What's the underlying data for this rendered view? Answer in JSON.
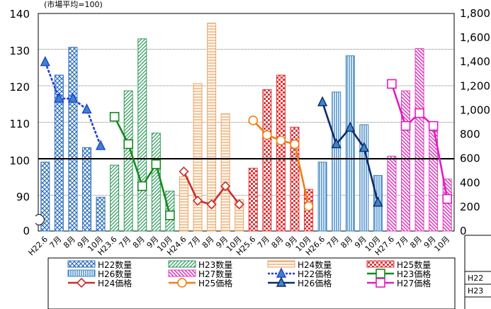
{
  "chart_data": {
    "type": "bar+line",
    "subtitle": "(市場平均=100)",
    "categories": [
      "H22.6",
      "7月",
      "8月",
      "9月",
      "10月",
      "H23.6",
      "7月",
      "8月",
      "9月",
      "10月",
      "H24.6",
      "7月",
      "8月",
      "9月",
      "10月",
      "H25.6",
      "7月",
      "8月",
      "9月",
      "10月",
      "H26.6",
      "7月",
      "8月",
      "9月",
      "10月",
      "H27.6",
      "7月",
      "8月",
      "9月",
      "10月"
    ],
    "left_axis": {
      "ticks": [
        "0",
        "90",
        "100",
        "110",
        "120",
        "130",
        "140"
      ],
      "break": true
    },
    "right_axis": {
      "ticks": [
        "0",
        "200",
        "400",
        "600",
        "800",
        "1,000",
        "1,200",
        "1,400",
        "1,600",
        "1,800"
      ],
      "ylim": [
        0,
        1800
      ]
    },
    "bars": [
      {
        "name": "H22数量",
        "color": "#2f6fb8",
        "pattern": "cross",
        "values": [
          570,
          1290,
          1520,
          690,
          280
        ]
      },
      {
        "name": "H23数量",
        "color": "#2e9a5b",
        "pattern": "diag",
        "values": [
          545,
          1160,
          1590,
          810,
          330
        ]
      },
      {
        "name": "H24数量",
        "color": "#e8a76a",
        "pattern": "hstripe",
        "values": [
          450,
          1220,
          1720,
          970,
          260
        ]
      },
      {
        "name": "H25数量",
        "color": "#e0383a",
        "pattern": "check",
        "values": [
          520,
          1170,
          1290,
          860,
          345
        ]
      },
      {
        "name": "H26数量",
        "color": "#3d85c6",
        "pattern": "vstripe",
        "values": [
          570,
          1150,
          1450,
          880,
          460
        ]
      },
      {
        "name": "H27数量",
        "color": "#e040c0",
        "pattern": "diag",
        "values": [
          620,
          1160,
          1510,
          830,
          430
        ]
      }
    ],
    "lines": [
      {
        "name": "H22価格",
        "color": "#1f3fd9",
        "marker": "triangle",
        "dash": true,
        "values": [
          126.5,
          116.5,
          116.5,
          113.5,
          103.5
        ]
      },
      {
        "name": "H23価格",
        "color": "#138a1f",
        "marker": "square",
        "values": [
          111.5,
          104,
          92.5,
          98.5,
          84.5
        ]
      },
      {
        "name": "H24価格",
        "color": "#c8302e",
        "marker": "diamond",
        "values": [
          96.5,
          88.5,
          87.5,
          92.5,
          87.5
        ]
      },
      {
        "name": "H25価格",
        "color": "#f07f17",
        "marker": "circle",
        "values": [
          110.5,
          106.5,
          105,
          104,
          87
        ]
      },
      {
        "name": "H26価格",
        "color": "#0d2a6b",
        "marker": "triangle",
        "values": [
          115.5,
          104,
          108.5,
          103,
          88
        ]
      },
      {
        "name": "H27価格",
        "color": "#e21cc0",
        "marker": "square",
        "values": [
          120.5,
          109,
          112.5,
          109,
          89
        ]
      }
    ],
    "legend_position": "bottom"
  },
  "table": {
    "row_labels": [
      "H22",
      "H23"
    ]
  }
}
